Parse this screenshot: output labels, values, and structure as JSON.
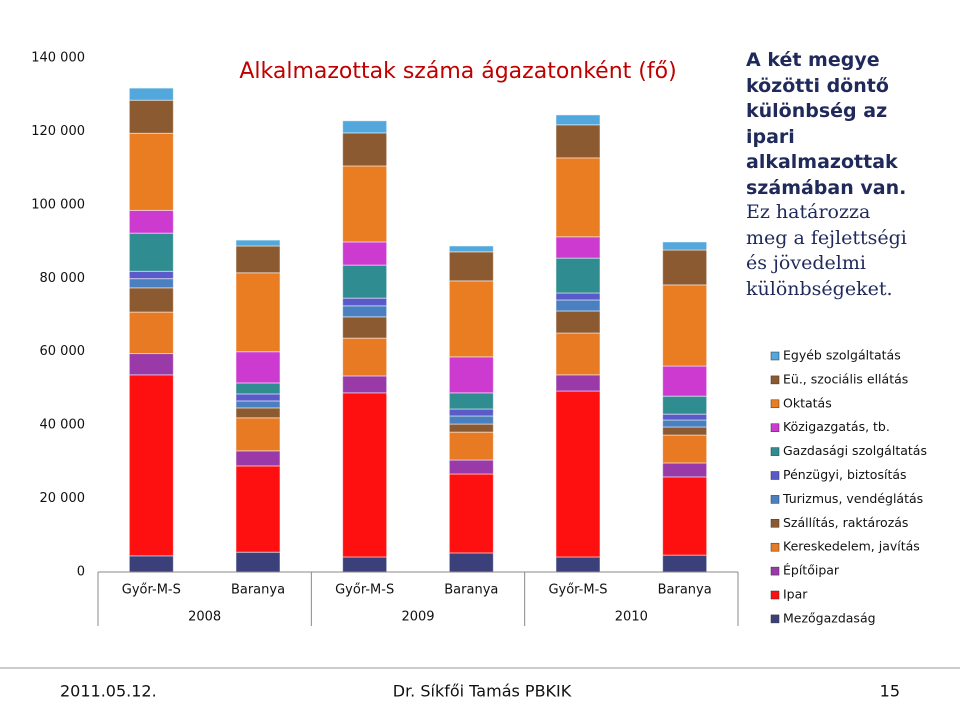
{
  "chart_data": {
    "type": "stacked_bar",
    "title": "Alkalmazottak száma ágazatonként (fő)",
    "categories": [
      "Győr-M-S",
      "Baranya",
      "Győr-M-S",
      "Baranya",
      "Győr-M-S",
      "Baranya"
    ],
    "groups": [
      "2008",
      "2009",
      "2010"
    ],
    "ylim": [
      0,
      140000
    ],
    "yticks": [
      0,
      {
        "value": 20000,
        "label": "20 000"
      },
      {
        "value": 40000,
        "label": "40 000"
      },
      {
        "value": 60000,
        "label": "60 000"
      },
      {
        "value": 80000,
        "label": "80 000"
      },
      {
        "value": 100000,
        "label": "100 000"
      },
      {
        "value": 120000,
        "label": "120 000"
      },
      {
        "value": 140000,
        "label": "140 000"
      }
    ],
    "legend": "right",
    "series": [
      {
        "name": "Mezőgazdaság",
        "color": "#3b3f7a",
        "values": [
          4400,
          5400,
          4100,
          5200,
          4100,
          4600
        ]
      },
      {
        "name": "Ipar",
        "color": "#ff1010",
        "values": [
          49300,
          23500,
          44700,
          21500,
          45200,
          21300
        ]
      },
      {
        "name": "Építőipar",
        "color": "#9a3aa8",
        "values": [
          5800,
          4100,
          4600,
          3800,
          4400,
          3800
        ]
      },
      {
        "name": "Kereskedelem, javítás",
        "color": "#e87a24",
        "values": [
          11300,
          9000,
          10300,
          7600,
          11400,
          7600
        ]
      },
      {
        "name": "Szállítás, raktározás",
        "color": "#8c5a30",
        "values": [
          6600,
          2700,
          5800,
          2200,
          6000,
          2200
        ]
      },
      {
        "name": "Turizmus, vendéglátás",
        "color": "#4a80c0",
        "values": [
          2500,
          1900,
          3000,
          2200,
          3000,
          1900
        ]
      },
      {
        "name": "Pénzügyi, biztosítás",
        "color": "#5a5ac8",
        "values": [
          2000,
          1900,
          2100,
          1900,
          1900,
          1600
        ]
      },
      {
        "name": "Gazdasági szolgáltatás",
        "color": "#2f8c90",
        "values": [
          10400,
          3000,
          9000,
          4400,
          9500,
          4900
        ]
      },
      {
        "name": "Közigazgatás, tb.",
        "color": "#cc3ad0",
        "values": [
          6200,
          8500,
          6300,
          9800,
          5800,
          8200
        ]
      },
      {
        "name": "Oktatás",
        "color": "#ea7c22",
        "values": [
          21000,
          21500,
          20700,
          20700,
          21500,
          22100
        ]
      },
      {
        "name": "Eü., szociális ellátás",
        "color": "#8c5a30",
        "values": [
          9000,
          7300,
          9000,
          7900,
          9000,
          9500
        ]
      },
      {
        "name": "Egyéb szolgáltatás",
        "color": "#52a8dc",
        "values": [
          3300,
          1600,
          3300,
          1600,
          2700,
          2200
        ]
      }
    ]
  },
  "side_text": [
    "A két megye közötti döntő különbség az ipari alkalmazottak számában van.",
    "Ez határozza meg a fejlettségi és jövedelmi különbségeket."
  ],
  "footer": {
    "date": "2011.05.12.",
    "author": "Dr. Síkfői Tamás PBKIK",
    "page": "15"
  }
}
